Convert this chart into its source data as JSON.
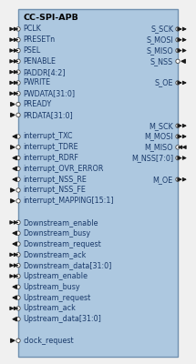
{
  "title": "CC-SPI-APB",
  "box_bg": "#adc8e0",
  "box_border": "#7090b0",
  "text_color": "#1a3a6a",
  "title_color": "#000000",
  "font_size": 5.8,
  "title_font_size": 6.8,
  "left_pins": [
    {
      "name": "PCLK",
      "dir": "in",
      "double": true,
      "row": 0
    },
    {
      "name": "PRESETn",
      "dir": "in",
      "double": true,
      "row": 1
    },
    {
      "name": "PSEL",
      "dir": "in",
      "double": true,
      "row": 2
    },
    {
      "name": "PENABLE",
      "dir": "in",
      "double": true,
      "row": 3
    },
    {
      "name": "PADDR[4:2]",
      "dir": "in",
      "double": true,
      "row": 4
    },
    {
      "name": "PWRITE",
      "dir": "in",
      "double": true,
      "row": 5
    },
    {
      "name": "PWDATA[31:0]",
      "dir": "in",
      "double": true,
      "row": 6
    },
    {
      "name": "PREADY",
      "dir": "in",
      "double": false,
      "row": 7
    },
    {
      "name": "PRDATA[31:0]",
      "dir": "in",
      "double": false,
      "row": 8
    },
    {
      "name": "interrupt_TXC",
      "dir": "out",
      "double": false,
      "row": 10
    },
    {
      "name": "interrupt_TDRE",
      "dir": "in",
      "double": false,
      "row": 11
    },
    {
      "name": "interrupt_RDRF",
      "dir": "out",
      "double": false,
      "row": 12
    },
    {
      "name": "interrupt_OVR_ERROR",
      "dir": "out",
      "double": false,
      "row": 13
    },
    {
      "name": "interrupt_NSS_RE",
      "dir": "out",
      "double": false,
      "row": 14
    },
    {
      "name": "interrupt_NSS_FE",
      "dir": "in",
      "double": false,
      "row": 15
    },
    {
      "name": "interrupt_MAPPING[15:1]",
      "dir": "in",
      "double": false,
      "row": 16
    },
    {
      "name": "Downstream_enable",
      "dir": "in",
      "double": true,
      "row": 18
    },
    {
      "name": "Downstream_busy",
      "dir": "out",
      "double": false,
      "row": 19
    },
    {
      "name": "Downstream_request",
      "dir": "out",
      "double": false,
      "row": 20
    },
    {
      "name": "Downstream_ack",
      "dir": "in",
      "double": true,
      "row": 21
    },
    {
      "name": "Downstream_data[31:0]",
      "dir": "in",
      "double": true,
      "row": 22
    },
    {
      "name": "Upstream_enable",
      "dir": "in",
      "double": true,
      "row": 23
    },
    {
      "name": "Upstream_busy",
      "dir": "out",
      "double": false,
      "row": 24
    },
    {
      "name": "Upstream_request",
      "dir": "out",
      "double": false,
      "row": 25
    },
    {
      "name": "Upstream_ack",
      "dir": "in",
      "double": true,
      "row": 26
    },
    {
      "name": "Upstream_data[31:0]",
      "dir": "out",
      "double": false,
      "row": 27
    },
    {
      "name": "clock_request",
      "dir": "in",
      "double": false,
      "row": 29
    }
  ],
  "right_pins": [
    {
      "name": "S_SCK",
      "dir": "out",
      "double": true,
      "row": 0
    },
    {
      "name": "S_MOSI",
      "dir": "out",
      "double": true,
      "row": 1
    },
    {
      "name": "S_MISO",
      "dir": "out",
      "double": true,
      "row": 2
    },
    {
      "name": "S_NSS",
      "dir": "in",
      "double": false,
      "row": 3
    },
    {
      "name": "S_OE",
      "dir": "out",
      "double": true,
      "row": 5
    },
    {
      "name": "M_SCK",
      "dir": "out",
      "double": true,
      "row": 9
    },
    {
      "name": "M_MOSI",
      "dir": "out",
      "double": true,
      "row": 10
    },
    {
      "name": "M_MISO",
      "dir": "in",
      "double": true,
      "row": 11
    },
    {
      "name": "M_NSS[7:0]",
      "dir": "out",
      "double": true,
      "row": 12
    },
    {
      "name": "M_OE",
      "dir": "out",
      "double": true,
      "row": 14
    }
  ]
}
